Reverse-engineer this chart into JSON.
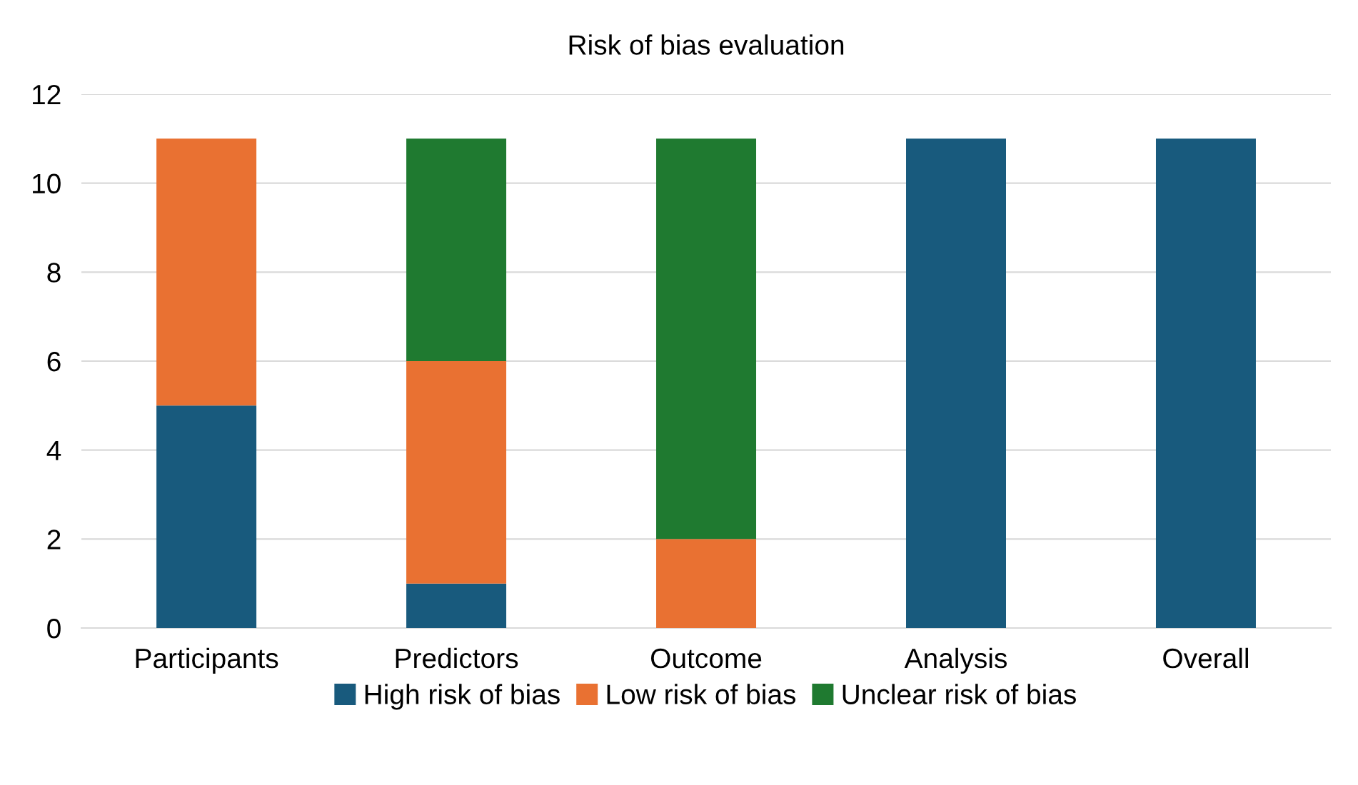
{
  "chart_data": {
    "type": "bar",
    "title": "Risk of bias evaluation",
    "stacked": true,
    "categories": [
      "Participants",
      "Predictors",
      "Outcome",
      "Analysis",
      "Overall"
    ],
    "series": [
      {
        "name": "High risk of bias",
        "color": "#185a7d",
        "values": [
          5,
          1,
          0,
          11,
          11
        ]
      },
      {
        "name": "Low risk of bias",
        "color": "#e97132",
        "values": [
          6,
          5,
          2,
          0,
          0
        ]
      },
      {
        "name": "Unclear risk of bias",
        "color": "#1f7a30",
        "values": [
          0,
          5,
          9,
          0,
          0
        ]
      }
    ],
    "ylim": [
      0,
      12
    ],
    "yticks": [
      0,
      2,
      4,
      6,
      8,
      10,
      12
    ],
    "grid": "y",
    "legend": "bottom"
  }
}
